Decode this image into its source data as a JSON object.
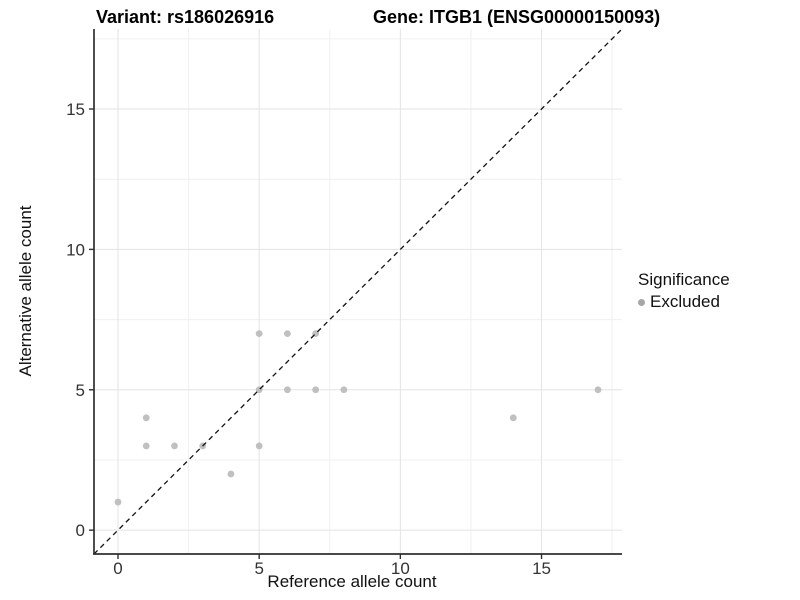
{
  "chart_data": {
    "type": "scatter",
    "title_variant": "Variant: rs186026916",
    "title_gene": "Gene: ITGB1 (ENSG00000150093)",
    "xlabel": "Reference allele count",
    "ylabel": "Alternative allele count",
    "xlim": [
      -0.85,
      17.85
    ],
    "ylim": [
      -0.85,
      17.85
    ],
    "x_ticks": [
      0,
      5,
      10,
      15
    ],
    "y_ticks": [
      0,
      5,
      10,
      15
    ],
    "x_minor_ticks": [
      2.5,
      7.5,
      12.5,
      17.5
    ],
    "y_minor_ticks": [
      2.5,
      7.5,
      12.5,
      17.5
    ],
    "grid": true,
    "legend_position": "right",
    "series": [
      {
        "name": "Excluded",
        "color": "#b9b9b9",
        "points": [
          [
            0,
            1
          ],
          [
            1,
            3
          ],
          [
            1,
            4
          ],
          [
            2,
            3
          ],
          [
            3,
            3
          ],
          [
            4,
            2
          ],
          [
            5,
            3
          ],
          [
            5,
            5
          ],
          [
            5,
            7
          ],
          [
            6,
            5
          ],
          [
            6,
            7
          ],
          [
            7,
            5
          ],
          [
            7,
            7
          ],
          [
            8,
            5
          ],
          [
            14,
            4
          ],
          [
            17,
            5
          ]
        ]
      }
    ],
    "reference_line": {
      "type": "identity",
      "slope": 1,
      "intercept": 0,
      "style": "dashed",
      "color": "#111111"
    },
    "legend": {
      "title": "Significance",
      "items": [
        {
          "label": "Excluded",
          "color": "#a6a6a6"
        }
      ]
    },
    "colors": {
      "background": "#ffffff",
      "grid_major": "#e3e3e3",
      "grid_minor": "#f0f0f0",
      "axis_line": "#2f2f2f",
      "tick_text": "#333333",
      "point": "#b9b9b9"
    }
  }
}
